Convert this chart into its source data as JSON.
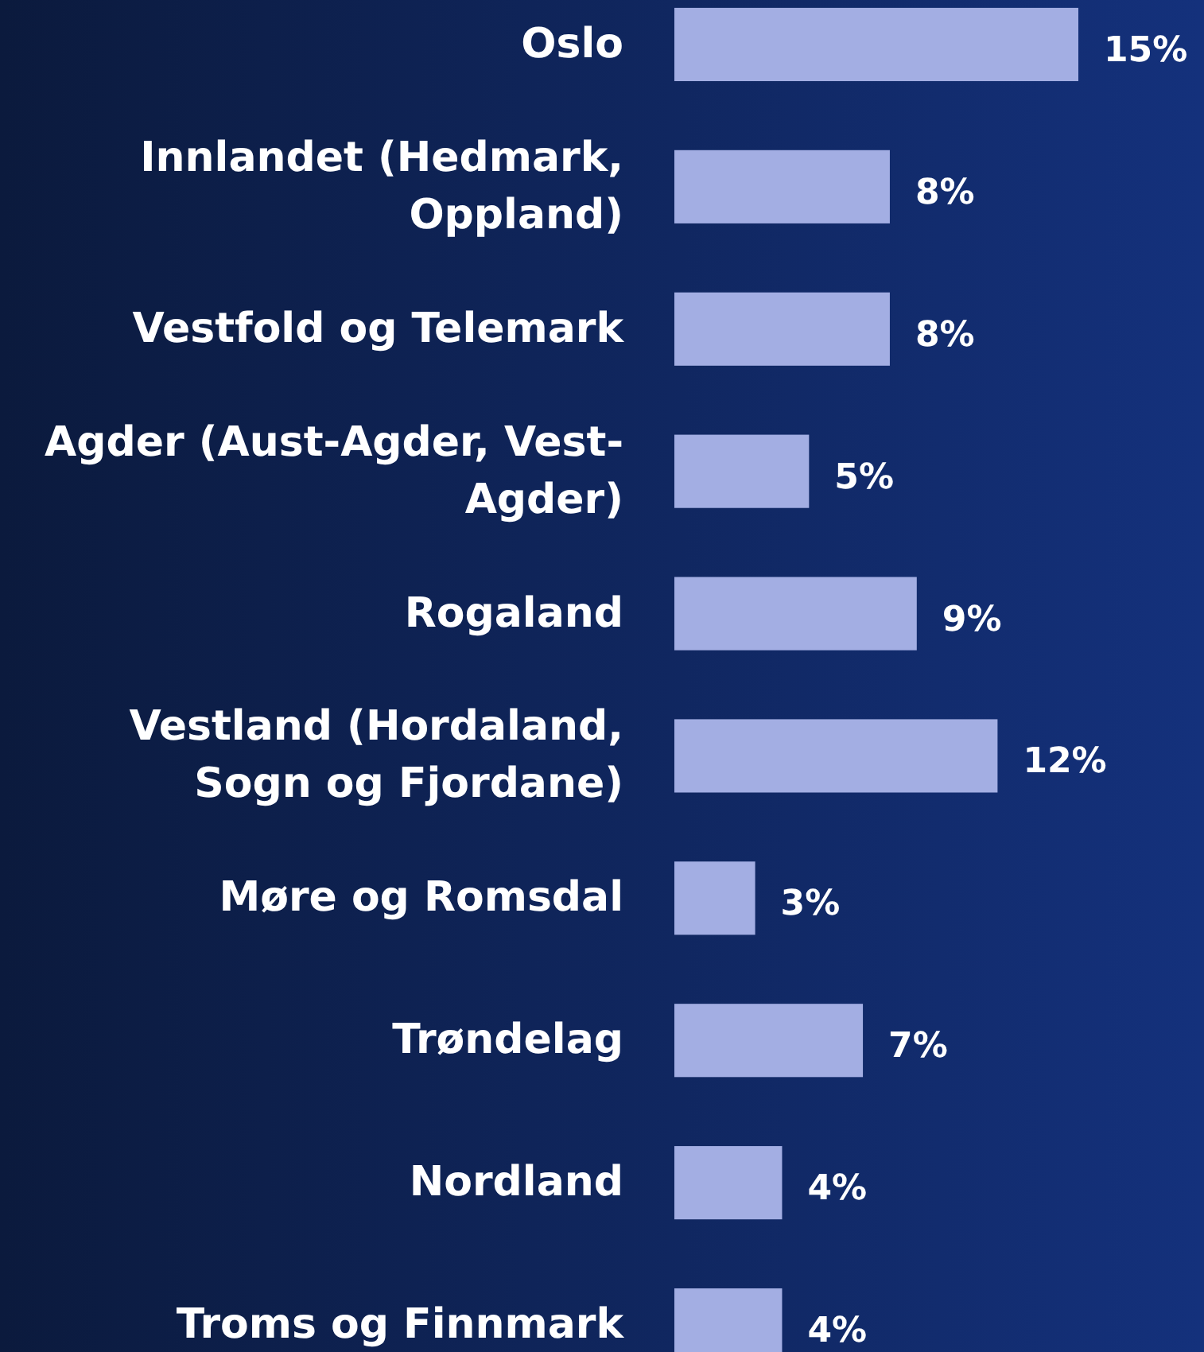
{
  "chart_data": {
    "type": "bar",
    "orientation": "horizontal",
    "color": "#a3aee3",
    "value_labels": [
      "15%",
      "8%",
      "8%",
      "5%",
      "9%",
      "12%",
      "3%",
      "7%",
      "4%",
      "4%"
    ],
    "categories": [
      "Oslo",
      "Innlandet (Hedmark, Oppland)",
      "Vestfold og Telemark",
      "Agder (Aust-Agder, Vest-Agder)",
      "Rogaland",
      "Vestland (Hordaland, Sogn og Fjordane)",
      "Møre og Romsdal",
      "Trøndelag",
      "Nordland",
      "Troms og Finnmark"
    ],
    "values": [
      15,
      8,
      8,
      5,
      9,
      12,
      3,
      7,
      4,
      4
    ]
  }
}
